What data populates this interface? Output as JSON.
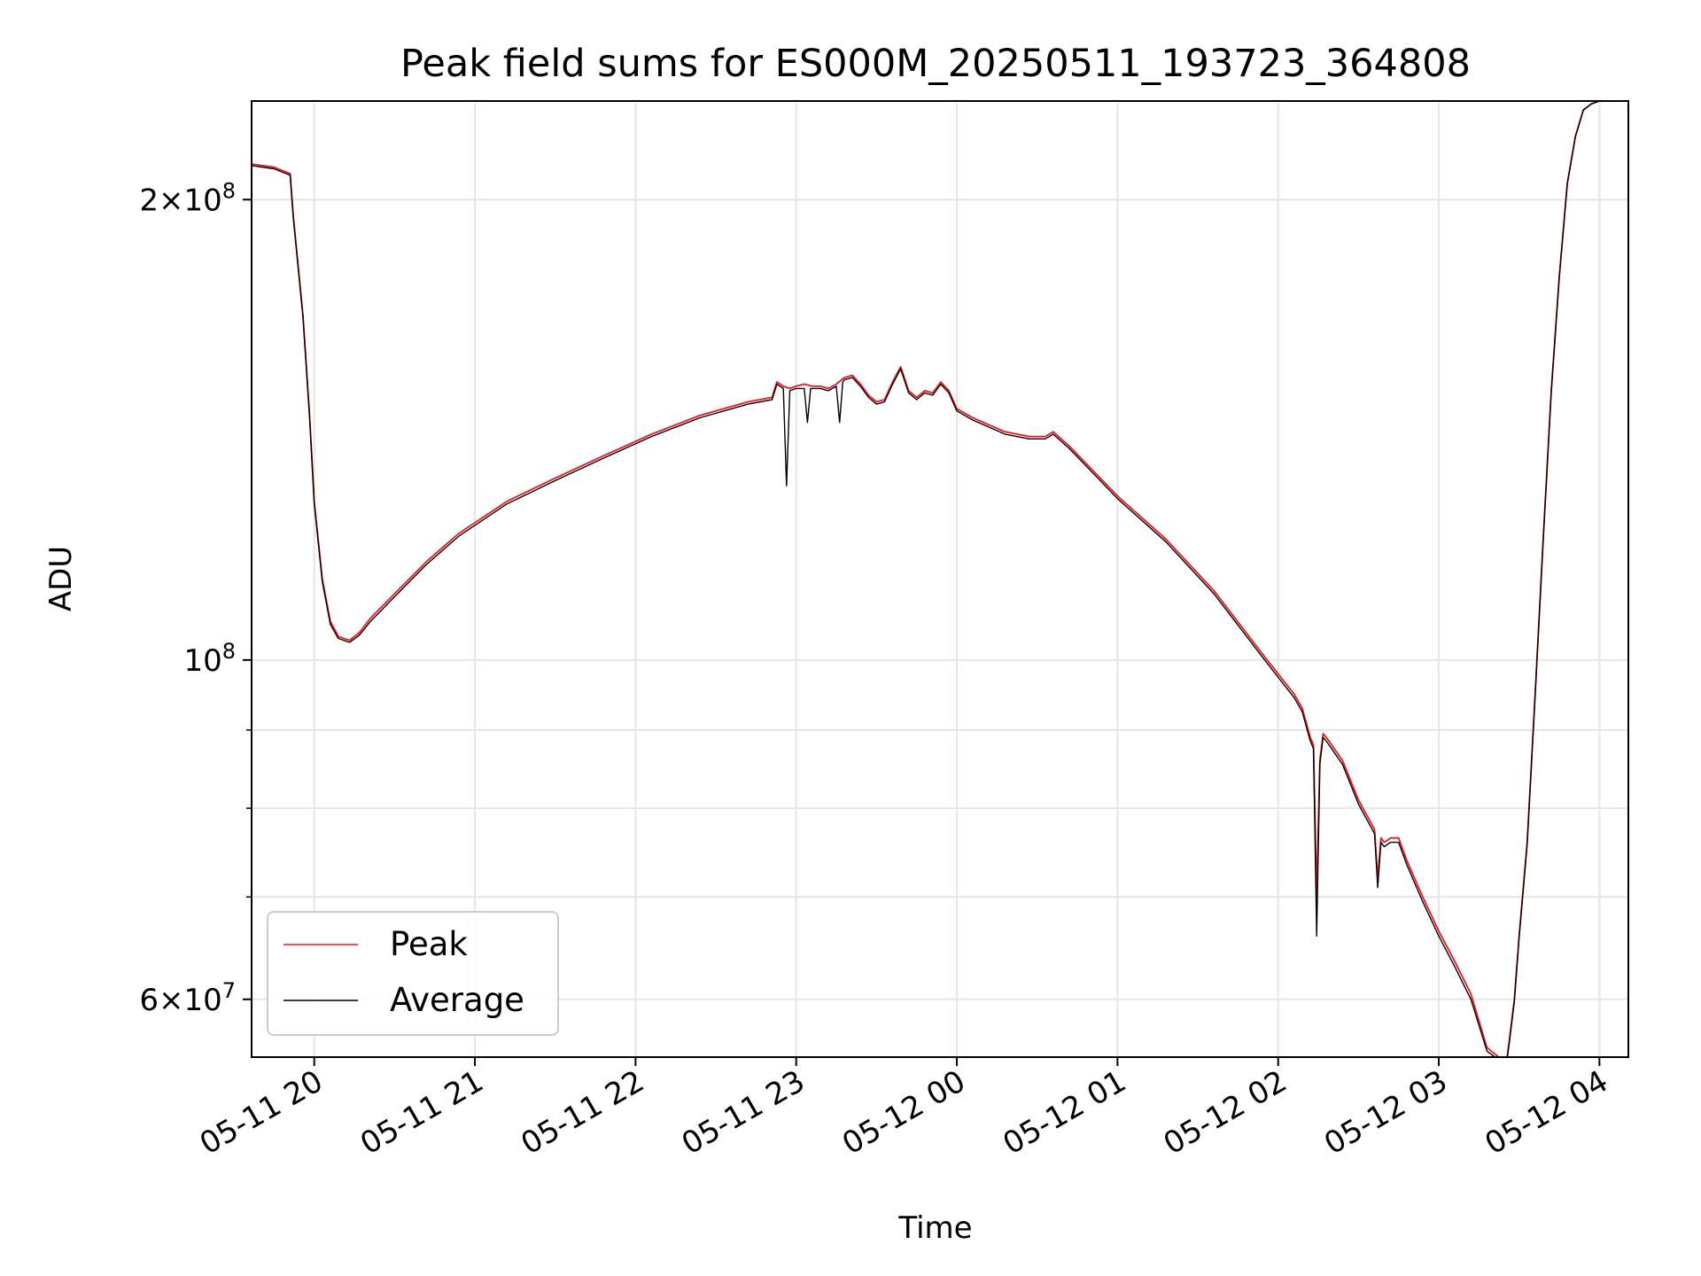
{
  "chart_data": {
    "type": "line",
    "title": "Peak field sums for ES000M_20250511_193723_364808",
    "xlabel": "Time",
    "ylabel": "ADU",
    "yscale": "log",
    "grid": true,
    "legend_position": "lower-left",
    "xlim": [
      19.61,
      28.18
    ],
    "ylim": [
      55000000,
      232000000
    ],
    "x_ticks": [
      {
        "value": 20,
        "label": "05-11 20"
      },
      {
        "value": 21,
        "label": "05-11 21"
      },
      {
        "value": 22,
        "label": "05-11 22"
      },
      {
        "value": 23,
        "label": "05-11 23"
      },
      {
        "value": 24,
        "label": "05-12 00"
      },
      {
        "value": 25,
        "label": "05-12 01"
      },
      {
        "value": 26,
        "label": "05-12 02"
      },
      {
        "value": 27,
        "label": "05-12 03"
      },
      {
        "value": 28,
        "label": "05-12 04"
      }
    ],
    "y_major_ticks": [
      {
        "value": 60000000,
        "mant": "6",
        "exp": "7"
      },
      {
        "value": 100000000,
        "mant": "",
        "exp": "8"
      },
      {
        "value": 200000000,
        "mant": "2",
        "exp": "8"
      }
    ],
    "y_minor_ticks": [
      70000000,
      80000000,
      90000000
    ],
    "series": [
      {
        "name": "Peak",
        "color": "#e8191c",
        "x": [
          19.61,
          19.75,
          19.85,
          19.87,
          19.93,
          19.97,
          20.0,
          20.05,
          20.1,
          20.15,
          20.22,
          20.28,
          20.35,
          20.5,
          20.7,
          20.9,
          21.2,
          21.5,
          21.8,
          22.1,
          22.4,
          22.7,
          22.85,
          22.88,
          22.92,
          22.96,
          23.0,
          23.05,
          23.1,
          23.15,
          23.2,
          23.25,
          23.3,
          23.35,
          23.4,
          23.45,
          23.5,
          23.55,
          23.6,
          23.65,
          23.7,
          23.75,
          23.8,
          23.85,
          23.9,
          23.95,
          24.0,
          24.1,
          24.2,
          24.3,
          24.45,
          24.55,
          24.6,
          24.7,
          25.0,
          25.3,
          25.6,
          25.9,
          26.1,
          26.15,
          26.2,
          26.22,
          26.24,
          26.26,
          26.28,
          26.3,
          26.4,
          26.5,
          26.6,
          26.62,
          26.64,
          26.66,
          26.7,
          26.75,
          26.8,
          26.9,
          27.0,
          27.1,
          27.2,
          27.3,
          27.42,
          27.44,
          27.47,
          27.5,
          27.55,
          27.6,
          27.65,
          27.7,
          27.75,
          27.8,
          27.85,
          27.9,
          27.95,
          28.0,
          28.05,
          28.18
        ],
        "values": [
          211000000,
          210000000,
          208000000,
          195000000,
          168000000,
          145000000,
          127000000,
          113000000,
          106000000,
          103600000,
          103000000,
          104200000,
          106500000,
          110500000,
          116000000,
          121000000,
          127000000,
          131500000,
          136000000,
          140500000,
          144500000,
          147500000,
          148500000,
          152000000,
          151000000,
          150500000,
          151000000,
          151500000,
          151000000,
          151000000,
          150500000,
          151500000,
          153000000,
          153500000,
          151500000,
          149000000,
          147500000,
          148000000,
          152000000,
          155500000,
          150000000,
          148500000,
          150000000,
          149500000,
          152000000,
          150000000,
          146000000,
          144000000,
          142500000,
          141000000,
          140000000,
          140000000,
          141000000,
          138000000,
          128000000,
          120000000,
          111000000,
          101000000,
          95000000,
          93000000,
          89000000,
          88000000,
          70000000,
          86000000,
          89500000,
          89000000,
          86000000,
          81000000,
          77500000,
          72000000,
          76500000,
          76000000,
          76500000,
          76500000,
          74000000,
          70000000,
          66500000,
          63500000,
          60500000,
          55800000,
          54500000,
          56500000,
          60000000,
          66000000,
          76000000,
          95000000,
          120000000,
          150000000,
          178000000,
          205000000,
          220000000,
          229000000,
          231000000,
          232000000,
          232000000,
          232000000
        ]
      },
      {
        "name": "Average",
        "color": "#000000",
        "x": [
          19.61,
          19.75,
          19.85,
          19.87,
          19.93,
          19.97,
          20.0,
          20.05,
          20.1,
          20.15,
          20.22,
          20.28,
          20.35,
          20.5,
          20.7,
          20.9,
          21.2,
          21.5,
          21.8,
          22.1,
          22.4,
          22.7,
          22.85,
          22.88,
          22.92,
          22.94,
          22.96,
          23.0,
          23.05,
          23.07,
          23.09,
          23.1,
          23.15,
          23.2,
          23.25,
          23.27,
          23.29,
          23.3,
          23.35,
          23.4,
          23.45,
          23.5,
          23.55,
          23.6,
          23.65,
          23.7,
          23.75,
          23.8,
          23.85,
          23.9,
          23.95,
          24.0,
          24.1,
          24.2,
          24.3,
          24.45,
          24.55,
          24.6,
          24.7,
          25.0,
          25.3,
          25.6,
          25.9,
          26.1,
          26.15,
          26.2,
          26.22,
          26.24,
          26.26,
          26.28,
          26.3,
          26.4,
          26.5,
          26.6,
          26.62,
          26.64,
          26.66,
          26.7,
          26.75,
          26.8,
          26.9,
          27.0,
          27.1,
          27.2,
          27.3,
          27.42,
          27.44,
          27.47,
          27.5,
          27.55,
          27.6,
          27.65,
          27.7,
          27.75,
          27.8,
          27.85,
          27.9,
          27.95,
          28.0,
          28.05,
          28.18
        ],
        "values": [
          210500000,
          209500000,
          207500000,
          194500000,
          167500000,
          144500000,
          126500000,
          112500000,
          105500000,
          103300000,
          102700000,
          103800000,
          106000000,
          110000000,
          115500000,
          120500000,
          126500000,
          131000000,
          135500000,
          140000000,
          144000000,
          147000000,
          148000000,
          151500000,
          150500000,
          130000000,
          150000000,
          150500000,
          150500000,
          143000000,
          150500000,
          150500000,
          150500000,
          150000000,
          151000000,
          143000000,
          152000000,
          152500000,
          153000000,
          151000000,
          148500000,
          147000000,
          147500000,
          151500000,
          155000000,
          149500000,
          148000000,
          149500000,
          149000000,
          151500000,
          149500000,
          145500000,
          143500000,
          142000000,
          140500000,
          139500000,
          139500000,
          140500000,
          137500000,
          127500000,
          119500000,
          110500000,
          100500000,
          94500000,
          92500000,
          88500000,
          87500000,
          66000000,
          85500000,
          89000000,
          88500000,
          85500000,
          80500000,
          77000000,
          71000000,
          76000000,
          75500000,
          76000000,
          76000000,
          73500000,
          69500000,
          66000000,
          63000000,
          60000000,
          55500000,
          54300000,
          56300000,
          59800000,
          65800000,
          75800000,
          94800000,
          119800000,
          149800000,
          177800000,
          204800000,
          219800000,
          228800000,
          231000000,
          232000000,
          232000000,
          232000000
        ]
      }
    ]
  }
}
